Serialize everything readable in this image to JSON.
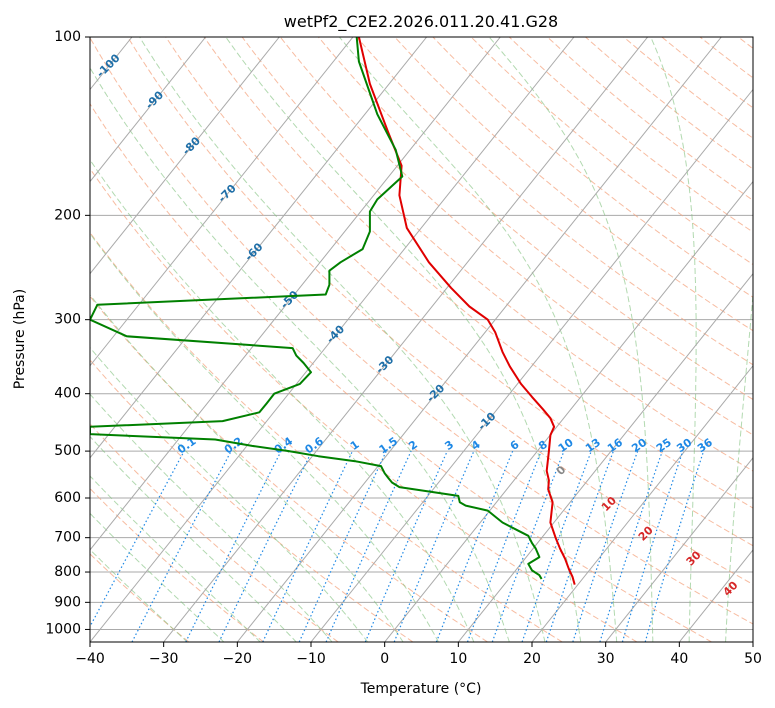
{
  "chart_data": {
    "type": "line",
    "title": "wetPf2_C2E2.2026.011.20.41.G28",
    "xlabel": "Temperature (°C)",
    "ylabel": "Pressure (hPa)",
    "xlim": [
      -40,
      50
    ],
    "ylim": [
      1050,
      100
    ],
    "y_scale": "log",
    "grid": true,
    "x_ticks": [
      "−40",
      "−30",
      "−20",
      "−10",
      "0",
      "10",
      "20",
      "30",
      "40",
      "50"
    ],
    "x_tick_values": [
      -40,
      -30,
      -20,
      -10,
      0,
      10,
      20,
      30,
      40,
      50
    ],
    "y_ticks": [
      "100",
      "200",
      "300",
      "400",
      "500",
      "600",
      "700",
      "800",
      "900",
      "1000"
    ],
    "y_tick_values": [
      100,
      200,
      300,
      400,
      500,
      600,
      700,
      800,
      900,
      1000
    ],
    "colors": {
      "temperature": "#e00000",
      "dewpoint": "#008000",
      "isotherm": "#aaaaaa",
      "dry_adiabat": "#f4a582",
      "moist_adiabat": "#7fbf7b",
      "mixing_ratio": "#1e88e5",
      "isotherm_label": "#1f6fa8",
      "adiabat_label_red": "#d62728",
      "zero_label": "#888888"
    },
    "series": [
      {
        "id": "temperature",
        "points": [
          [
            -3.5,
            100
          ],
          [
            -2,
            120
          ],
          [
            0.5,
            145
          ],
          [
            2.3,
            165
          ],
          [
            2,
            185
          ],
          [
            3,
            210
          ],
          [
            6,
            240
          ],
          [
            9,
            265
          ],
          [
            11.5,
            285
          ],
          [
            14,
            300
          ],
          [
            15,
            315
          ],
          [
            16,
            340
          ],
          [
            17,
            360
          ],
          [
            18.5,
            385
          ],
          [
            20,
            405
          ],
          [
            21.5,
            425
          ],
          [
            22.5,
            440
          ],
          [
            23,
            455
          ],
          [
            22.5,
            470
          ],
          [
            22.3,
            500
          ],
          [
            22,
            540
          ],
          [
            22.3,
            560
          ],
          [
            22.2,
            580
          ],
          [
            22.8,
            610
          ],
          [
            22.5,
            660
          ],
          [
            23.2,
            700
          ],
          [
            23.8,
            730
          ],
          [
            24.5,
            760
          ],
          [
            25,
            790
          ],
          [
            25.5,
            815
          ],
          [
            25.8,
            840
          ]
        ]
      },
      {
        "id": "dewpoint",
        "points": [
          [
            -3.8,
            100
          ],
          [
            -3.5,
            110
          ],
          [
            -1,
            135
          ],
          [
            1.5,
            155
          ],
          [
            2.4,
            172
          ],
          [
            -1,
            188
          ],
          [
            -2,
            197
          ],
          [
            -2,
            213
          ],
          [
            -3,
            228
          ],
          [
            -6,
            240
          ],
          [
            -7.5,
            248
          ],
          [
            -7.5,
            262
          ],
          [
            -8,
            272
          ],
          [
            -39,
            283
          ],
          [
            -40,
            300
          ],
          [
            -35,
            320
          ],
          [
            -12.5,
            335
          ],
          [
            -12,
            345
          ],
          [
            -11,
            355
          ],
          [
            -10,
            368
          ],
          [
            -11.5,
            385
          ],
          [
            -15,
            400
          ],
          [
            -16,
            415
          ],
          [
            -17,
            430
          ],
          [
            -22,
            445
          ],
          [
            -40,
            455
          ],
          [
            -40,
            468
          ],
          [
            -23,
            478
          ],
          [
            -18,
            490
          ],
          [
            -13,
            500
          ],
          [
            -9,
            510
          ],
          [
            -4,
            520
          ],
          [
            -0.5,
            530
          ],
          [
            0,
            545
          ],
          [
            0.5,
            555
          ],
          [
            1,
            565
          ],
          [
            2,
            575
          ],
          [
            6,
            585
          ],
          [
            10,
            595
          ],
          [
            10.2,
            610
          ],
          [
            11,
            618
          ],
          [
            14,
            630
          ],
          [
            15,
            645
          ],
          [
            16,
            660
          ],
          [
            17,
            670
          ],
          [
            18,
            680
          ],
          [
            19.5,
            695
          ],
          [
            20,
            715
          ],
          [
            20.5,
            730
          ],
          [
            21,
            755
          ],
          [
            19.5,
            775
          ],
          [
            20,
            795
          ],
          [
            21,
            810
          ],
          [
            21.3,
            822
          ]
        ]
      }
    ],
    "isotherm_labels": [
      "-100",
      "-90",
      "-80",
      "-70",
      "-60",
      "-50",
      "-40",
      "-30",
      "-20",
      "-10"
    ],
    "isotherm_label_values": [
      -100,
      -90,
      -80,
      -70,
      -60,
      -50,
      -40,
      -30,
      -20,
      -10
    ],
    "mixing_ratio_labels": [
      "0.1",
      "0.2",
      "0.4",
      "0.6",
      "1",
      "1.5",
      "2",
      "3",
      "4",
      "6",
      "8",
      "10",
      "13",
      "16",
      "20",
      "25",
      "30",
      "36"
    ],
    "mixing_ratio_values": [
      0.1,
      0.2,
      0.4,
      0.6,
      1,
      1.5,
      2,
      3,
      4,
      6,
      8,
      10,
      13,
      16,
      20,
      25,
      30,
      36
    ],
    "moist_adiabat_labels": [
      "0",
      "10",
      "20",
      "30",
      "40"
    ],
    "moist_adiabat_values": [
      0,
      10,
      20,
      30,
      40
    ]
  }
}
